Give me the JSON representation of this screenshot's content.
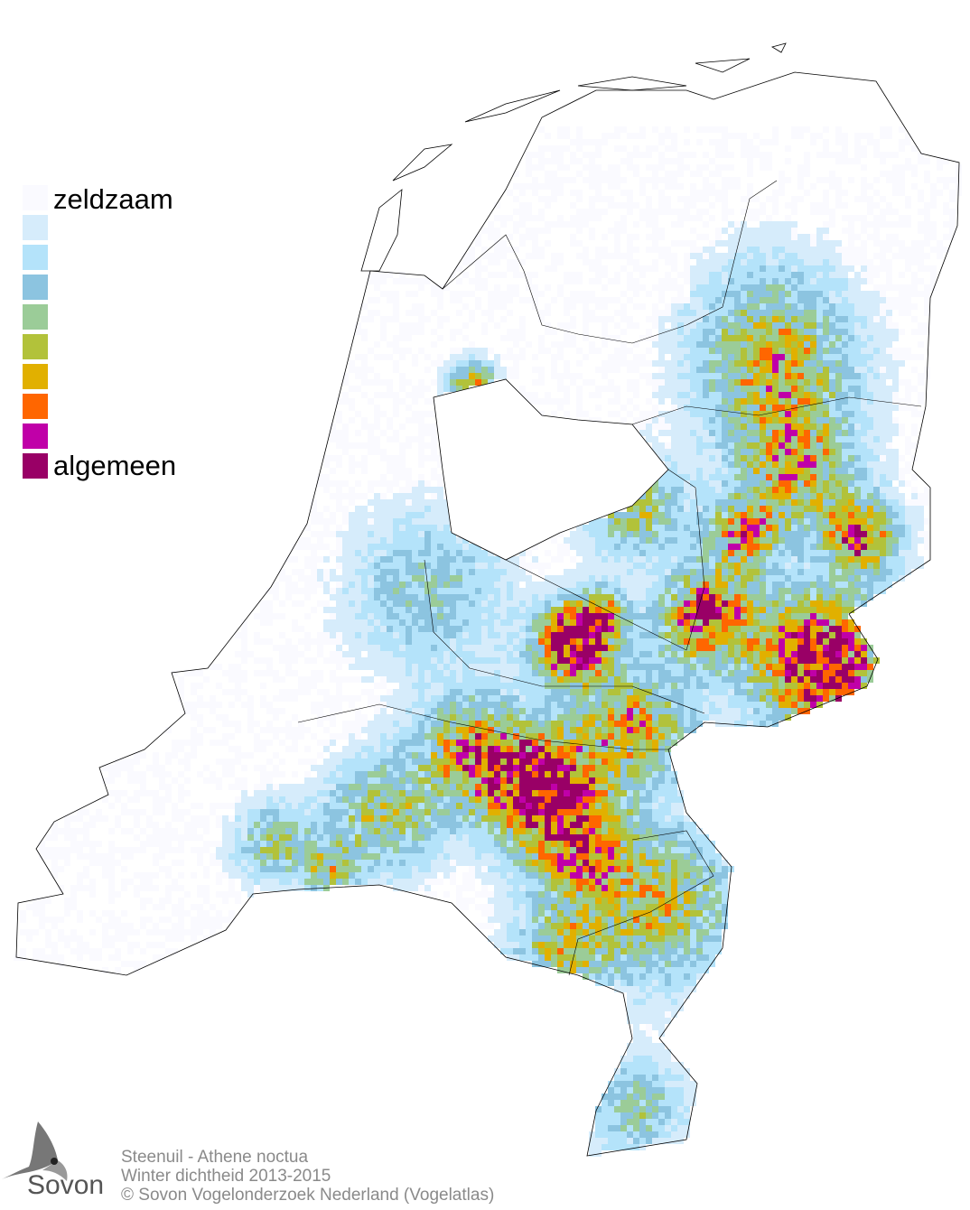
{
  "legend": {
    "labels": {
      "low": "zeldzaam",
      "high": "algemeen"
    },
    "colors": [
      "#fafaff",
      "#d6ecfb",
      "#b4e3fa",
      "#8cc4e0",
      "#9bcc98",
      "#b2c23a",
      "#e1b000",
      "#ff6600",
      "#c000a8",
      "#990066"
    ]
  },
  "credits": {
    "species": "Steenuil - Athene noctua",
    "subtitle": "Winter dichtheid 2013-2015",
    "copyright": "© Sovon Vogelonderzoek Nederland (Vogelatlas)"
  },
  "logo": {
    "text": "Sovon",
    "icon": "swallow-icon"
  },
  "map": {
    "region": "Nederland",
    "boundary_color": "#000000"
  }
}
